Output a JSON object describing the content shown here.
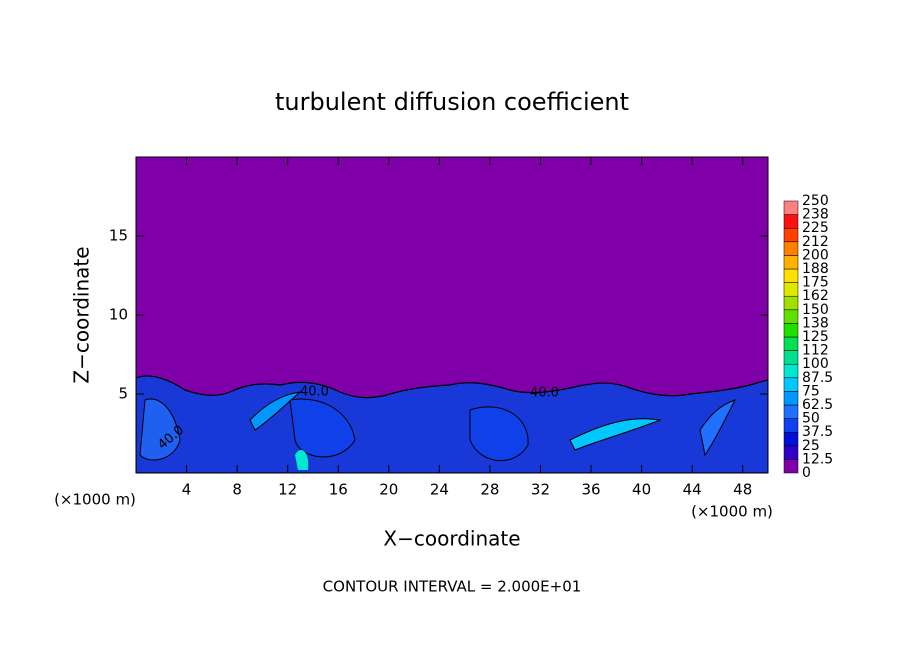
{
  "chart_data": {
    "type": "contour",
    "title": "turbulent diffusion coefficient",
    "x_label": "X−coordinate",
    "y_label": "Z−coordinate",
    "x_unit": "(×1000 m)",
    "x_unit_right": "(×1000 m)",
    "footer": "CONTOUR INTERVAL = 2.000E+01",
    "contour_labels": [
      "40.0",
      "40.0",
      "40.0"
    ],
    "background_color": "#7f00a8",
    "xlim": [
      0,
      50
    ],
    "xticks": [
      4,
      8,
      12,
      16,
      20,
      24,
      28,
      32,
      36,
      40,
      44,
      48
    ],
    "ylim": [
      0,
      20
    ],
    "yticks": [
      5,
      10,
      15
    ],
    "clim": [
      0,
      250
    ],
    "levels": [
      0,
      12.5,
      25,
      37.5,
      50,
      62.5,
      75,
      87.5,
      100,
      {
        "value": 112.5,
        "label": "112"
      },
      125,
      {
        "value": 137.5,
        "label": "138"
      },
      150,
      {
        "value": 162.5,
        "label": "162"
      },
      175,
      {
        "value": 187.5,
        "label": "188"
      },
      200,
      {
        "value": 212.5,
        "label": "212"
      },
      225,
      {
        "value": 237.5,
        "label": "238"
      },
      250
    ],
    "level_colors": [
      "#7f00a8",
      "#3000c8",
      "#0010d8",
      "#1040f0",
      "#2070ff",
      "#0098ff",
      "#00c8ff",
      "#00e8d0",
      "#00e090",
      "#00e050",
      "#20e000",
      "#60e000",
      "#a0e000",
      "#e0e800",
      "#ffe000",
      "#ffb000",
      "#ff8000",
      "#ff4000",
      "#ff1010",
      "#ff8080"
    ]
  }
}
